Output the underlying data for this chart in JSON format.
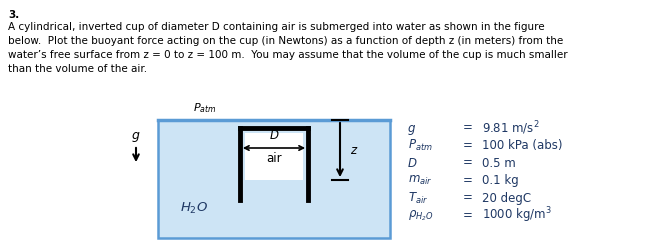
{
  "problem_number": "3.",
  "problem_text_lines": [
    "A cylindrical, inverted cup of diameter D containing air is submerged into water as shown in the figure",
    "below.  Plot the buoyant force acting on the cup (in Newtons) as a function of depth z (in meters) from the",
    "water’s free surface from z = 0 to z = 100 m.  You may assume that the volume of the cup is much smaller",
    "than the volume of the air."
  ],
  "water_color": "#cde4f5",
  "water_border_color": "#5b9bd5",
  "bg_color": "#ffffff",
  "text_color": "#1f3864",
  "sym_labels": [
    "g",
    "P_atm",
    "D",
    "m_air",
    "T_air",
    "rho_H2O"
  ],
  "val_labels": [
    "9.81 m/s2",
    "100 kPa (abs)",
    "0.5 m",
    "0.1 kg",
    "20 degC",
    "1000 kg/m3"
  ]
}
